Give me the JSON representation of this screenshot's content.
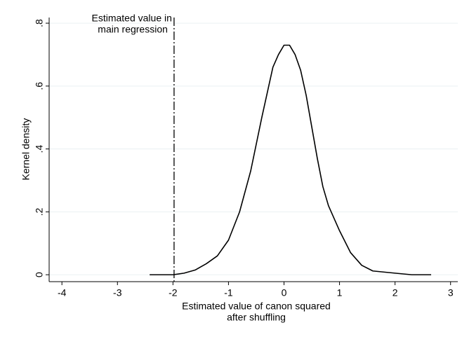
{
  "chart_data": {
    "type": "line",
    "x_label": [
      "Estimated value of canon squared",
      "after shuffling"
    ],
    "y_label": "Kernel density",
    "annotation": [
      "Estimated value in",
      "main regression"
    ],
    "reference_line": -1.98,
    "x": [
      -2.42,
      -2.0,
      -1.8,
      -1.6,
      -1.4,
      -1.2,
      -1.0,
      -0.8,
      -0.6,
      -0.4,
      -0.2,
      -0.1,
      0.0,
      0.1,
      0.2,
      0.3,
      0.4,
      0.5,
      0.6,
      0.7,
      0.8,
      1.0,
      1.2,
      1.4,
      1.6,
      2.0,
      2.3,
      2.65
    ],
    "values": [
      0,
      0,
      0.005,
      0.015,
      0.035,
      0.06,
      0.11,
      0.2,
      0.33,
      0.5,
      0.66,
      0.7,
      0.73,
      0.73,
      0.7,
      0.65,
      0.57,
      0.47,
      0.37,
      0.28,
      0.22,
      0.14,
      0.07,
      0.03,
      0.012,
      0.005,
      0,
      0
    ],
    "color": "#000000",
    "xlim": [
      -4.23,
      3.13
    ],
    "ylim": [
      -0.022,
      0.818
    ],
    "xticks": [
      -4,
      -3,
      -2,
      -1,
      0,
      1,
      2,
      3
    ],
    "yticks": [
      0,
      {
        "value": 0.2,
        "label": ".2"
      },
      {
        "value": 0.4,
        "label": ".4"
      },
      {
        "value": 0.6,
        "label": ".6"
      },
      {
        "value": 0.8,
        "label": ".8"
      }
    ],
    "grid": true
  }
}
